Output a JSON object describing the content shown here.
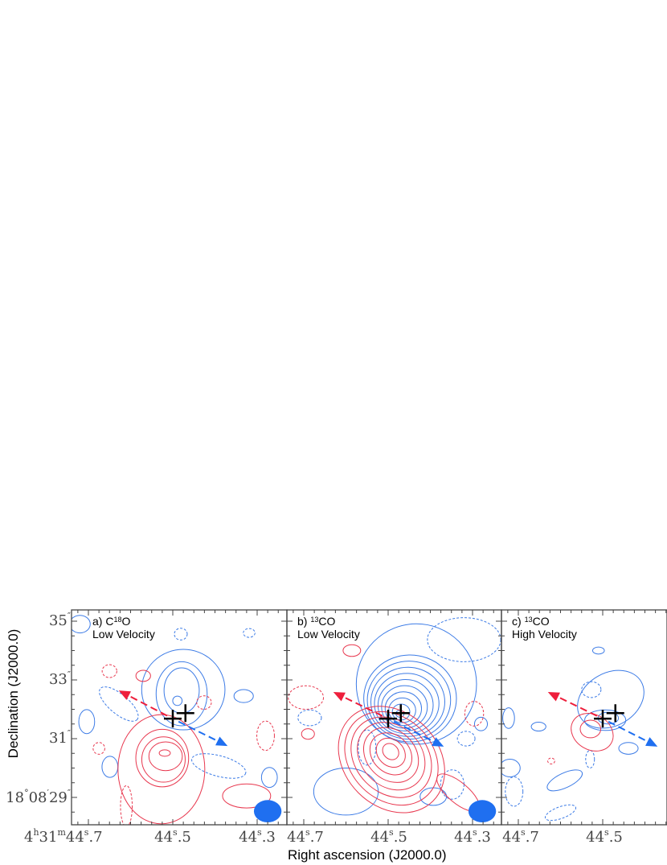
{
  "chart_data": {
    "type": "contour",
    "xlabel": "Right ascension (J2000.0)",
    "ylabel": "Declination (J2000.0)",
    "colors": {
      "blue": "#3c7be6",
      "red": "#e8384f",
      "blue_fill": "#1f6ff0",
      "red_arrow": "#ee1f3c",
      "axis": "#444444"
    },
    "ra_ticks": [
      44.7,
      44.5,
      44.3
    ],
    "dec_ticks": [
      35,
      33,
      31,
      29
    ],
    "ra_range": [
      44.74,
      44.23
    ],
    "dec_range": [
      35.38,
      28.07
    ],
    "dec_labels": [
      {
        "deg": "",
        "min": "",
        "sec": "35",
        "unit": "″"
      },
      {
        "deg": "",
        "min": "",
        "sec": "33",
        "unit": "″"
      },
      {
        "deg": "",
        "min": "",
        "sec": "31",
        "unit": "″"
      },
      {
        "deg": "18",
        "deg_unit": "°",
        "min": "08",
        "min_unit": "′",
        "sec": "29",
        "unit": "″"
      }
    ],
    "ra_label_first": {
      "h": "4",
      "h_unit": "h",
      "m": "31",
      "m_unit": "m",
      "s": "44",
      "s_unit": "s",
      "frac": ".7"
    },
    "ra_labels": [
      {
        "s": "44",
        "s_unit": "s",
        "frac": ".7"
      },
      {
        "s": "44",
        "s_unit": "s",
        "frac": ".5"
      },
      {
        "s": "44",
        "s_unit": "s",
        "frac": ".3"
      }
    ],
    "stars": [
      [
        44.5,
        31.68
      ],
      [
        44.47,
        31.87
      ]
    ],
    "panels": [
      {
        "id": "a",
        "label_prefix": "a) C",
        "label_sup": "18",
        "label_suffix": "O",
        "subtitle": "Low Velocity",
        "beam": [
          44.275,
          28.53,
          0.47,
          0.38
        ],
        "arrows": {
          "red_tip": [
            44.628,
            32.64
          ],
          "blue_tip": [
            44.37,
            30.75
          ]
        },
        "contours": [
          {
            "c": "blue",
            "s": "solid",
            "e": [
              44.475,
              32.67,
              1.42,
              1.37,
              0
            ]
          },
          {
            "c": "blue",
            "s": "solid",
            "e": [
              44.479,
              32.53,
              0.87,
              1.09,
              0
            ]
          },
          {
            "c": "blue",
            "s": "solid",
            "e": [
              44.479,
              32.64,
              0.6,
              0.77,
              0
            ]
          },
          {
            "c": "blue",
            "s": "solid",
            "e": [
              44.489,
              32.29,
              0.16,
              0.16,
              0
            ]
          },
          {
            "c": "blue",
            "s": "solid",
            "e": [
              44.704,
              31.58,
              0.27,
              0.41,
              0
            ]
          },
          {
            "c": "blue",
            "s": "solid",
            "e": [
              44.649,
              30.04,
              0.27,
              0.36,
              0
            ]
          },
          {
            "c": "blue",
            "s": "solid",
            "e": [
              44.332,
              32.45,
              0.33,
              0.22,
              0
            ]
          },
          {
            "c": "blue",
            "s": "solid",
            "e": [
              44.271,
              29.68,
              0.27,
              0.34,
              0
            ]
          },
          {
            "c": "blue",
            "s": "solid",
            "e": [
              44.72,
              34.9,
              0.35,
              0.3,
              0
            ]
          },
          {
            "c": "blue",
            "s": "dashed",
            "e": [
              44.628,
              32.18,
              0.82,
              0.33,
              40
            ]
          },
          {
            "c": "blue",
            "s": "dashed",
            "e": [
              44.391,
              30.07,
              0.95,
              0.35,
              15
            ]
          },
          {
            "c": "blue",
            "s": "dashed",
            "e": [
              44.481,
              34.56,
              0.22,
              0.2,
              0
            ]
          },
          {
            "c": "blue",
            "s": "dashed",
            "e": [
              44.319,
              34.6,
              0.2,
              0.15,
              0
            ]
          },
          {
            "c": "red",
            "s": "solid",
            "e": [
              44.527,
              29.96,
              1.48,
              1.86,
              0
            ]
          },
          {
            "c": "red",
            "s": "solid",
            "e": [
              44.525,
              30.34,
              0.9,
              0.98,
              0
            ]
          },
          {
            "c": "red",
            "s": "solid",
            "e": [
              44.522,
              30.29,
              0.74,
              0.77,
              0
            ]
          },
          {
            "c": "red",
            "s": "solid",
            "e": [
              44.517,
              30.4,
              0.57,
              0.49,
              0
            ]
          },
          {
            "c": "red",
            "s": "solid",
            "e": [
              44.519,
              30.51,
              0.19,
              0.11,
              0
            ]
          },
          {
            "c": "red",
            "s": "solid",
            "e": [
              44.325,
              29.05,
              0.82,
              0.41,
              0
            ]
          },
          {
            "c": "red",
            "s": "solid",
            "e": [
              44.57,
              33.14,
              0.25,
              0.19,
              0
            ]
          },
          {
            "c": "red",
            "s": "dashed",
            "e": [
              44.65,
              33.3,
              0.25,
              0.22,
              0
            ]
          },
          {
            "c": "red",
            "s": "dashed",
            "e": [
              44.675,
              30.67,
              0.2,
              0.2,
              0
            ]
          },
          {
            "c": "red",
            "s": "dashed",
            "e": [
              44.426,
              32.23,
              0.25,
              0.23,
              0
            ]
          },
          {
            "c": "red",
            "s": "dashed",
            "e": [
              44.28,
              31.1,
              0.3,
              0.5,
              0
            ]
          },
          {
            "c": "red",
            "s": "dashed",
            "e": [
              44.61,
              28.7,
              0.2,
              0.7,
              0
            ]
          }
        ],
        "nested": []
      },
      {
        "id": "b",
        "label_prefix": "b) ",
        "label_sup": "13",
        "label_suffix": "CO",
        "subtitle": "Low Velocity",
        "beam": [
          44.277,
          28.53,
          0.47,
          0.38
        ],
        "arrows": {
          "red_tip": [
            44.63,
            32.59
          ],
          "blue_tip": [
            44.368,
            30.73
          ]
        },
        "contours": [
          {
            "c": "blue",
            "s": "solid",
            "e": [
              44.433,
              32.86,
              2.05,
              2.05,
              0
            ]
          },
          {
            "c": "blue",
            "s": "solid",
            "e": [
              44.6,
              29.2,
              1.1,
              0.8,
              0
            ]
          },
          {
            "c": "blue",
            "s": "solid",
            "e": [
              44.393,
              29.03,
              0.45,
              0.3,
              0
            ]
          },
          {
            "c": "blue",
            "s": "solid",
            "e": [
              44.28,
              31.5,
              0.22,
              0.23,
              0
            ]
          },
          {
            "c": "blue",
            "s": "dashed",
            "e": [
              44.32,
              34.37,
              1.25,
              0.75,
              0
            ]
          },
          {
            "c": "blue",
            "s": "dashed",
            "e": [
              44.686,
              31.71,
              0.4,
              0.27,
              0
            ]
          },
          {
            "c": "blue",
            "s": "dashed",
            "e": [
              44.315,
              31.0,
              0.3,
              0.25,
              0
            ]
          },
          {
            "c": "blue",
            "s": "dashed",
            "e": [
              44.348,
              29.44,
              0.4,
              0.5,
              0
            ]
          },
          {
            "c": "blue",
            "s": "dashed",
            "e": [
              44.55,
              30.7,
              0.3,
              0.6,
              0
            ]
          },
          {
            "c": "red",
            "s": "solid",
            "e": [
              44.334,
              29.16,
              0.9,
              0.35,
              40
            ]
          },
          {
            "c": "red",
            "s": "solid",
            "e": [
              44.69,
              31.16,
              0.22,
              0.18,
              0
            ]
          },
          {
            "c": "red",
            "s": "solid",
            "e": [
              44.586,
              34.0,
              0.3,
              0.2,
              0
            ]
          },
          {
            "c": "red",
            "s": "dashed",
            "e": [
              44.695,
              32.4,
              0.6,
              0.4,
              0
            ]
          },
          {
            "c": "red",
            "s": "dashed",
            "e": [
              44.296,
              31.85,
              0.32,
              0.42,
              0
            ]
          }
        ],
        "nested": [
          {
            "c": "blue",
            "n": 10,
            "outer": [
              44.448,
              32.37,
              1.58,
              1.48,
              0
            ],
            "inner": [
              44.472,
              31.85,
              0.14,
              0.12,
              0
            ]
          },
          {
            "c": "red",
            "n": 8,
            "outer": [
              44.492,
              30.29,
              2.0,
              1.6,
              45
            ],
            "inner": [
              44.494,
              30.56,
              0.3,
              0.25,
              45
            ]
          }
        ]
      },
      {
        "id": "c",
        "label_prefix": "c) ",
        "label_sup": "13",
        "label_suffix": "CO",
        "subtitle": "High Velocity",
        "beam": null,
        "arrows": {
          "red_tip": [
            44.63,
            32.59
          ],
          "blue_tip": [
            44.37,
            30.73
          ]
        },
        "contours": [
          {
            "c": "blue",
            "s": "solid",
            "e": [
              44.481,
              32.34,
              1.2,
              0.9,
              -30
            ]
          },
          {
            "c": "blue",
            "s": "solid",
            "e": [
              44.494,
              31.63,
              0.7,
              0.35,
              0
            ]
          },
          {
            "c": "blue",
            "s": "solid",
            "e": [
              44.487,
              31.7,
              0.35,
              0.2,
              0
            ]
          },
          {
            "c": "blue",
            "s": "solid",
            "e": [
              44.51,
              34.0,
              0.2,
              0.12,
              0
            ]
          },
          {
            "c": "blue",
            "s": "solid",
            "e": [
              44.723,
              31.7,
              0.2,
              0.35,
              0
            ]
          },
          {
            "c": "blue",
            "s": "solid",
            "e": [
              44.652,
              31.41,
              0.25,
              0.15,
              0
            ]
          },
          {
            "c": "blue",
            "s": "solid",
            "e": [
              44.439,
              30.67,
              0.33,
              0.2,
              0
            ]
          },
          {
            "c": "blue",
            "s": "solid",
            "e": [
              44.59,
              29.58,
              0.65,
              0.25,
              -25
            ]
          },
          {
            "c": "blue",
            "s": "solid",
            "e": [
              44.72,
              30.0,
              0.35,
              0.3,
              0
            ]
          },
          {
            "c": "blue",
            "s": "dashed",
            "e": [
              44.527,
              32.67,
              0.33,
              0.27,
              0
            ]
          },
          {
            "c": "blue",
            "s": "dashed",
            "e": [
              44.53,
              30.3,
              0.15,
              0.3,
              0
            ]
          },
          {
            "c": "blue",
            "s": "dashed",
            "e": [
              44.6,
              28.48,
              0.55,
              0.2,
              -20
            ]
          },
          {
            "c": "blue",
            "s": "dashed",
            "e": [
              44.71,
              29.2,
              0.3,
              0.5,
              0
            ]
          },
          {
            "c": "red",
            "s": "solid",
            "e": [
              44.525,
              31.22,
              0.75,
              0.6,
              30
            ]
          },
          {
            "c": "red",
            "s": "solid",
            "e": [
              44.529,
              31.33,
              0.35,
              0.3,
              0
            ]
          },
          {
            "c": "red",
            "s": "dashed",
            "e": [
              44.622,
              30.24,
              0.12,
              0.1,
              0
            ]
          }
        ],
        "nested": []
      }
    ]
  }
}
